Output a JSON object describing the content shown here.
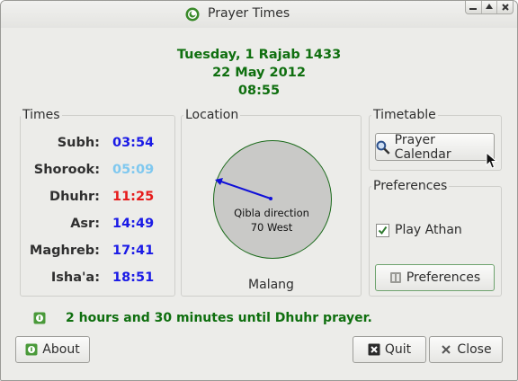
{
  "window": {
    "title": "Prayer Times",
    "icon": "prayer-times-app-icon",
    "controls": [
      "minimize-icon",
      "maximize-icon",
      "close-icon"
    ]
  },
  "header": {
    "hijri_date": "Tuesday, 1 Rajab 1433",
    "gregorian_date": "22 May 2012",
    "time": "08:55"
  },
  "times": {
    "label": "Times",
    "rows": [
      {
        "name": "Subh:",
        "time": "03:54",
        "color": "#1a1ae6"
      },
      {
        "name": "Shorook:",
        "time": "05:09",
        "color": "#7fc8ef"
      },
      {
        "name": "Dhuhr:",
        "time": "11:25",
        "color": "#e61a1a"
      },
      {
        "name": "Asr:",
        "time": "14:49",
        "color": "#1a1ae6"
      },
      {
        "name": "Maghreb:",
        "time": "17:41",
        "color": "#1a1ae6"
      },
      {
        "name": "Isha'a:",
        "time": "18:51",
        "color": "#1a1ae6"
      }
    ]
  },
  "location": {
    "label": "Location",
    "qibla_label": "Qibla direction",
    "qibla_value": "70 West",
    "city": "Malang",
    "needle_color": "#1010d8",
    "ring_color": "#1c6b1c"
  },
  "timetable": {
    "label": "Timetable",
    "button_label": "Prayer Calendar",
    "icon": "magnifier-icon"
  },
  "preferences": {
    "label": "Preferences",
    "play_athan_label": "Play Athan",
    "play_athan_checked": true,
    "button_label": "Preferences",
    "icon": "preferences-icon"
  },
  "status": {
    "text": "2 hours and 30 minutes until Dhuhr prayer.",
    "icon": "info-icon"
  },
  "footer": {
    "about_label": "About",
    "quit_label": "Quit",
    "close_label": "Close"
  },
  "colors": {
    "accent_green": "#0f6f0f"
  }
}
